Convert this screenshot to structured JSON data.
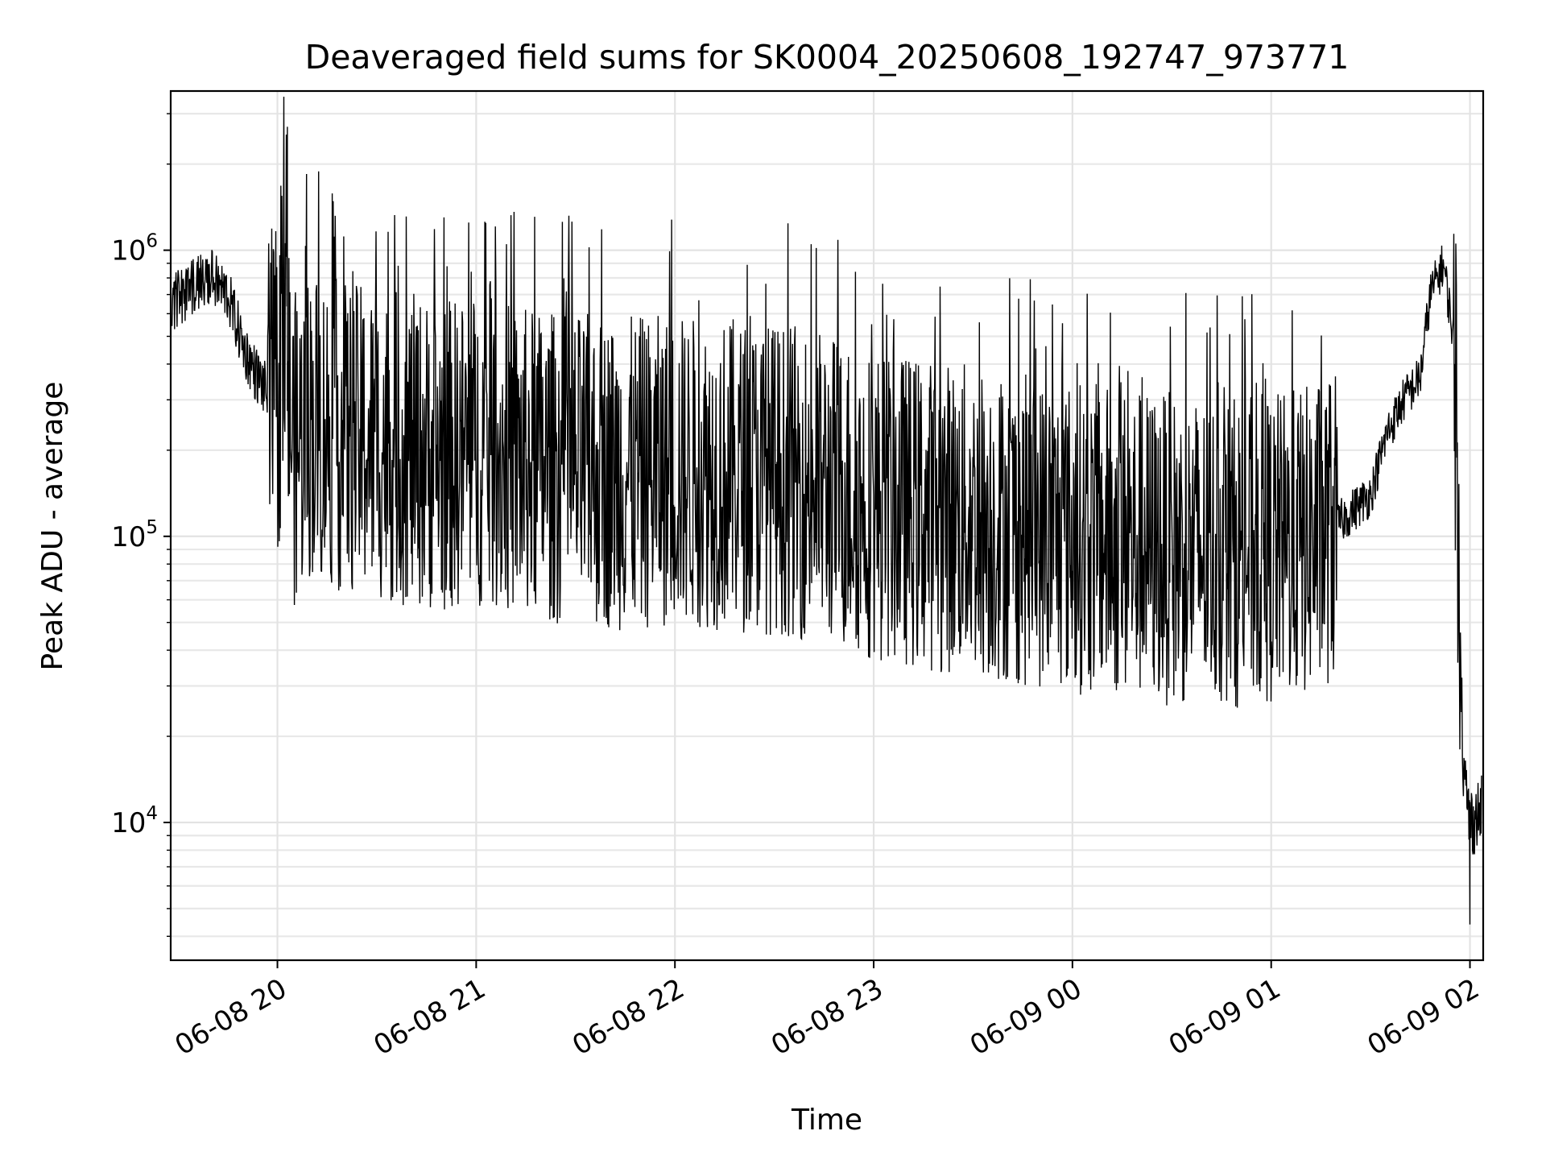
{
  "chart_data": {
    "type": "line",
    "title": "Deaveraged field sums for SK0004_20250608_192747_973771",
    "xlabel": "Time",
    "ylabel": "Peak ADU - average",
    "yscale": "log",
    "ylim": [
      3300,
      3600000
    ],
    "xlim": [
      "06-08 19:27:47",
      "06-09 02:04:00"
    ],
    "grid": "major and minor, both axes",
    "x_tick_labels": [
      "06-08 20",
      "06-08 21",
      "06-08 22",
      "06-08 23",
      "06-09 00",
      "06-09 01",
      "06-09 02"
    ],
    "y_tick_labels": [
      {
        "base": "10",
        "exp": "4",
        "value": 10000
      },
      {
        "base": "10",
        "exp": "5",
        "value": 100000
      },
      {
        "base": "10",
        "exp": "6",
        "value": 1000000
      }
    ],
    "series": [
      {
        "color": "#000000",
        "x": [
          "06-08 19:28",
          "06-08 19:35",
          "06-08 19:40",
          "06-08 19:45",
          "06-08 19:50",
          "06-08 19:53",
          "06-08 19:56",
          "06-08 20:00",
          "06-08 20:02",
          "06-08 20:05",
          "06-08 20:10",
          "06-08 20:20",
          "06-08 20:30",
          "06-08 20:40",
          "06-08 20:50",
          "06-08 21:00",
          "06-08 21:15",
          "06-08 21:30",
          "06-08 21:45",
          "06-08 22:00",
          "06-08 22:15",
          "06-08 22:30",
          "06-08 22:45",
          "06-08 23:00",
          "06-08 23:15",
          "06-08 23:30",
          "06-08 23:45",
          "06-09 00:00",
          "06-09 00:15",
          "06-09 00:30",
          "06-09 00:45",
          "06-09 01:00",
          "06-09 01:10",
          "06-09 01:20",
          "06-09 01:30",
          "06-09 01:35",
          "06-09 01:40",
          "06-09 01:45",
          "06-09 01:48",
          "06-09 01:52",
          "06-09 01:55",
          "06-09 01:56",
          "06-09 01:58",
          "06-09 02:00",
          "06-09 02:04"
        ],
        "y": [
          650000,
          750000,
          800000,
          700000,
          450000,
          380000,
          330000,
          280000,
          500000,
          200000,
          250000,
          220000,
          210000,
          200000,
          190000,
          200000,
          180000,
          170000,
          165000,
          170000,
          165000,
          160000,
          150000,
          130000,
          120000,
          115000,
          105000,
          100000,
          95000,
          90000,
          88000,
          90000,
          95000,
          110000,
          140000,
          230000,
          300000,
          360000,
          700000,
          900000,
          500000,
          200000,
          15000,
          10000,
          11000
        ]
      }
    ],
    "annotations": [
      {
        "x": "06-08 20:03",
        "y": 2700000,
        "label": ""
      },
      {
        "x": "06-09 02:00",
        "y": 4400,
        "label": ""
      }
    ]
  }
}
